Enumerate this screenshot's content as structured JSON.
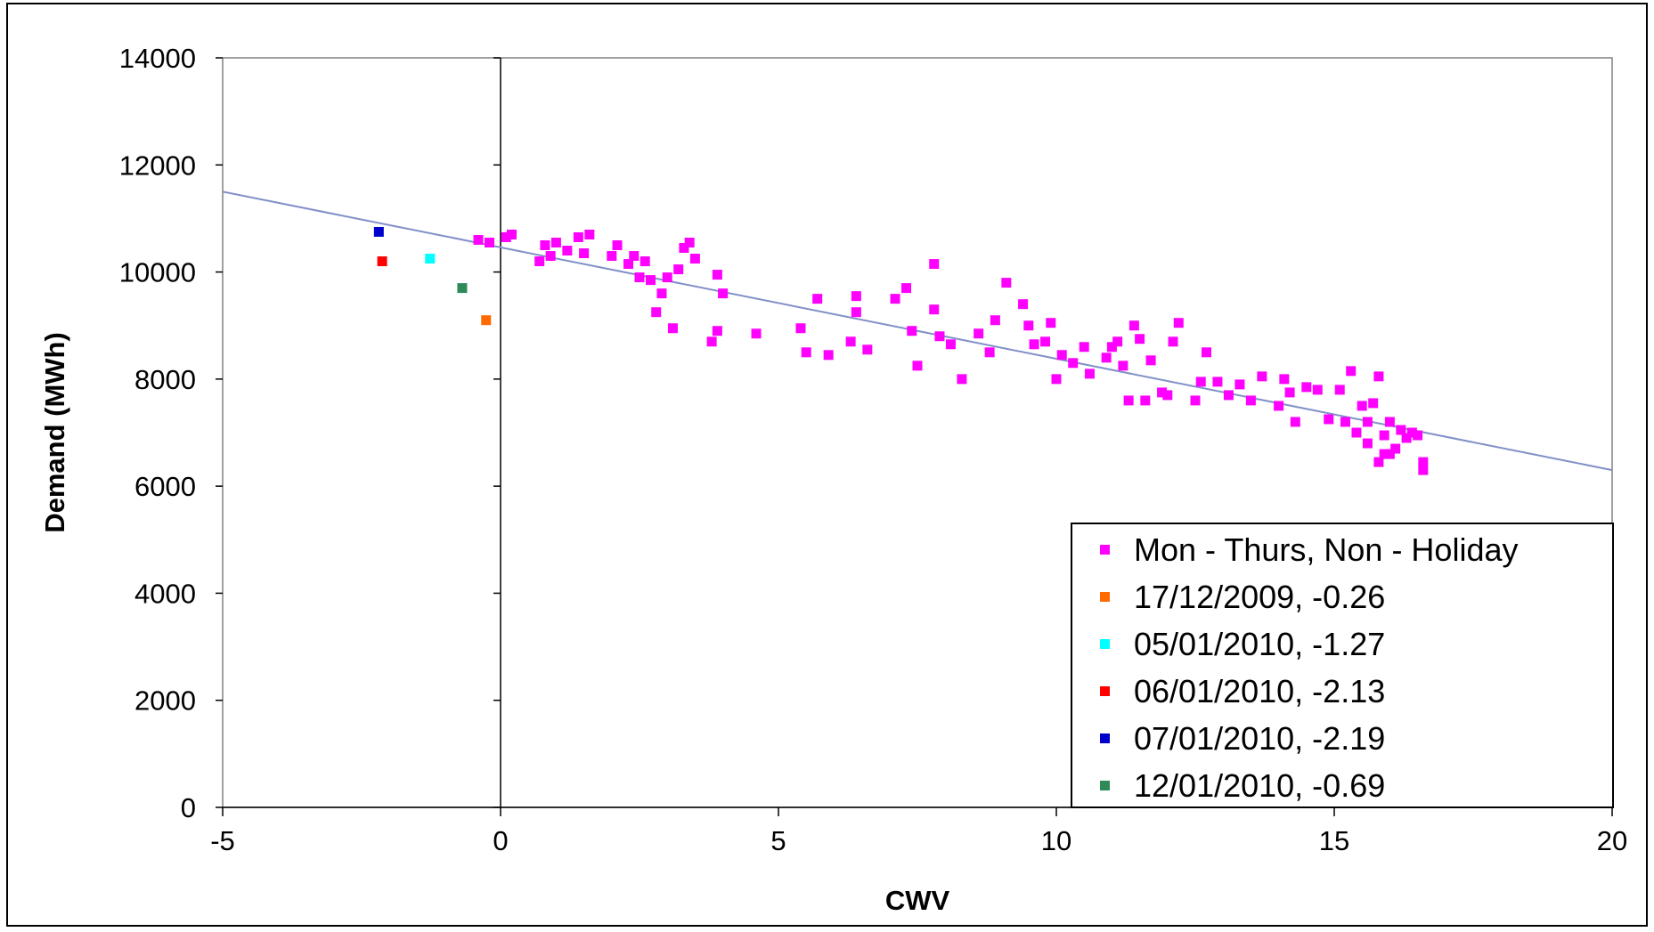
{
  "chart_data": {
    "type": "scatter",
    "title": "",
    "xlabel": "CWV",
    "ylabel": "Demand (MWh)",
    "xlim": [
      -5,
      20
    ],
    "ylim": [
      0,
      14000
    ],
    "x_ticks": [
      -5,
      0,
      5,
      10,
      15,
      20
    ],
    "y_ticks": [
      0,
      2000,
      4000,
      6000,
      8000,
      10000,
      12000,
      14000
    ],
    "grid": false,
    "legend_position": "bottom-right",
    "trendline": {
      "color": "#8090c8",
      "points": [
        [
          -5,
          11500
        ],
        [
          20,
          6300
        ]
      ]
    },
    "series": [
      {
        "name": "Mon - Thurs, Non - Holiday",
        "color": "#ff00ff",
        "points": [
          [
            -0.4,
            10600
          ],
          [
            -0.2,
            10550
          ],
          [
            0.1,
            10650
          ],
          [
            0.2,
            10700
          ],
          [
            0.7,
            10200
          ],
          [
            0.8,
            10500
          ],
          [
            0.9,
            10300
          ],
          [
            1.0,
            10550
          ],
          [
            1.2,
            10400
          ],
          [
            1.4,
            10650
          ],
          [
            1.5,
            10350
          ],
          [
            1.6,
            10700
          ],
          [
            2.0,
            10300
          ],
          [
            2.1,
            10500
          ],
          [
            2.3,
            10150
          ],
          [
            2.4,
            10300
          ],
          [
            2.5,
            9900
          ],
          [
            2.6,
            10200
          ],
          [
            2.7,
            9850
          ],
          [
            2.8,
            9250
          ],
          [
            2.9,
            9600
          ],
          [
            3.0,
            9900
          ],
          [
            3.1,
            8950
          ],
          [
            3.2,
            10050
          ],
          [
            3.3,
            10450
          ],
          [
            3.4,
            10550
          ],
          [
            3.5,
            10250
          ],
          [
            3.8,
            8700
          ],
          [
            3.9,
            8900
          ],
          [
            3.9,
            9950
          ],
          [
            4.0,
            9600
          ],
          [
            4.6,
            8850
          ],
          [
            5.4,
            8950
          ],
          [
            5.5,
            8500
          ],
          [
            5.7,
            9500
          ],
          [
            5.9,
            8450
          ],
          [
            6.3,
            8700
          ],
          [
            6.4,
            9550
          ],
          [
            6.4,
            9250
          ],
          [
            6.6,
            8550
          ],
          [
            7.1,
            9500
          ],
          [
            7.3,
            9700
          ],
          [
            7.4,
            8900
          ],
          [
            7.5,
            8250
          ],
          [
            7.8,
            10150
          ],
          [
            7.8,
            9300
          ],
          [
            7.9,
            8800
          ],
          [
            8.1,
            8650
          ],
          [
            8.3,
            8000
          ],
          [
            8.6,
            8850
          ],
          [
            8.8,
            8500
          ],
          [
            8.9,
            9100
          ],
          [
            9.1,
            9800
          ],
          [
            9.4,
            9400
          ],
          [
            9.5,
            9000
          ],
          [
            9.6,
            8650
          ],
          [
            9.8,
            8700
          ],
          [
            9.9,
            9050
          ],
          [
            10.0,
            8000
          ],
          [
            10.1,
            8450
          ],
          [
            10.3,
            8300
          ],
          [
            10.5,
            8600
          ],
          [
            10.6,
            8100
          ],
          [
            10.9,
            8400
          ],
          [
            11.0,
            8600
          ],
          [
            11.1,
            8700
          ],
          [
            11.2,
            8250
          ],
          [
            11.3,
            7600
          ],
          [
            11.4,
            9000
          ],
          [
            11.5,
            8750
          ],
          [
            11.6,
            7600
          ],
          [
            11.7,
            8350
          ],
          [
            11.9,
            7750
          ],
          [
            12.0,
            7700
          ],
          [
            12.1,
            8700
          ],
          [
            12.2,
            9050
          ],
          [
            12.5,
            7600
          ],
          [
            12.6,
            7950
          ],
          [
            12.7,
            8500
          ],
          [
            12.9,
            7950
          ],
          [
            13.1,
            7700
          ],
          [
            13.3,
            7900
          ],
          [
            13.5,
            7600
          ],
          [
            13.7,
            8050
          ],
          [
            14.0,
            7500
          ],
          [
            14.1,
            8000
          ],
          [
            14.2,
            7750
          ],
          [
            14.3,
            7200
          ],
          [
            14.5,
            7850
          ],
          [
            14.7,
            7800
          ],
          [
            14.9,
            7250
          ],
          [
            15.1,
            7800
          ],
          [
            15.2,
            7200
          ],
          [
            15.3,
            8150
          ],
          [
            15.4,
            7000
          ],
          [
            15.5,
            7500
          ],
          [
            15.6,
            6800
          ],
          [
            15.6,
            7200
          ],
          [
            15.7,
            7550
          ],
          [
            15.8,
            6450
          ],
          [
            15.8,
            8050
          ],
          [
            15.9,
            6950
          ],
          [
            15.9,
            6600
          ],
          [
            16.0,
            6600
          ],
          [
            16.0,
            7200
          ],
          [
            16.1,
            6700
          ],
          [
            16.2,
            7050
          ],
          [
            16.3,
            6900
          ],
          [
            16.4,
            7000
          ],
          [
            16.5,
            6950
          ],
          [
            16.6,
            6300
          ],
          [
            16.6,
            6450
          ]
        ]
      },
      {
        "name": "17/12/2009, -0.26",
        "color": "#ff6a00",
        "points": [
          [
            -0.26,
            9100
          ]
        ]
      },
      {
        "name": "05/01/2010, -1.27",
        "color": "#00ffff",
        "points": [
          [
            -1.27,
            10250
          ]
        ]
      },
      {
        "name": "06/01/2010, -2.13",
        "color": "#ff0000",
        "points": [
          [
            -2.13,
            10200
          ]
        ]
      },
      {
        "name": "07/01/2010, -2.19",
        "color": "#0000cc",
        "points": [
          [
            -2.19,
            10750
          ]
        ]
      },
      {
        "name": "12/01/2010, -0.69",
        "color": "#2e8b57",
        "points": [
          [
            -0.69,
            9700
          ]
        ]
      }
    ]
  }
}
